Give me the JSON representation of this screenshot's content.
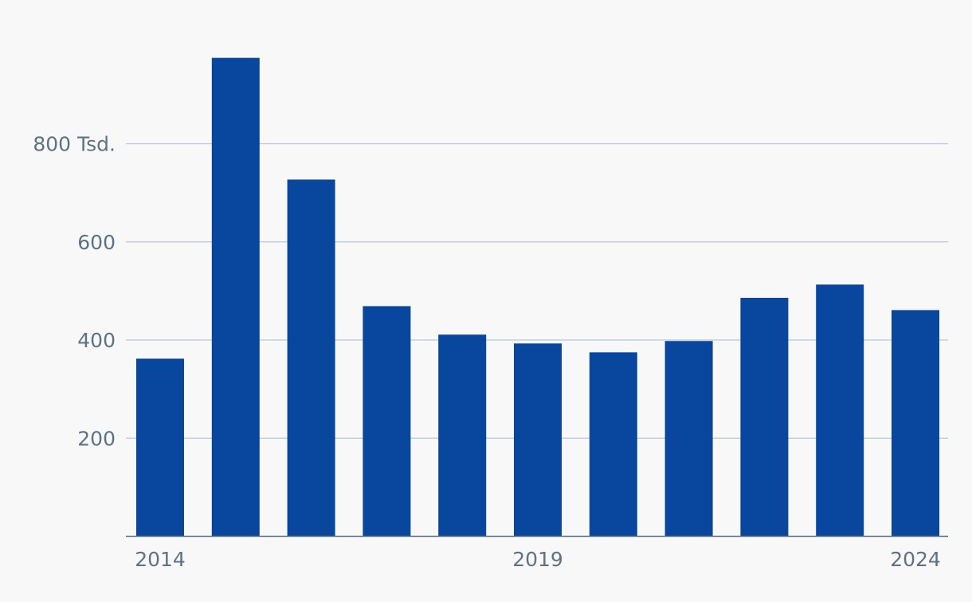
{
  "chart_data": {
    "type": "bar",
    "categories": [
      "2014",
      "2015",
      "2016",
      "2017",
      "2018",
      "2019",
      "2020",
      "2021",
      "2022",
      "2023",
      "2024"
    ],
    "values": [
      362,
      975,
      727,
      469,
      411,
      393,
      375,
      398,
      486,
      513,
      461
    ],
    "x_tick_labels": [
      "2014",
      "2019",
      "2024"
    ],
    "y_ticks": [
      200,
      400,
      600,
      800
    ],
    "y_tick_labels": [
      "200",
      "400",
      "600",
      "800 Tsd."
    ],
    "ylim": [
      0,
      1000
    ],
    "title": "",
    "xlabel": "",
    "ylabel": "",
    "grid": true,
    "legend": "none",
    "colors": {
      "bar": "#09469d",
      "grid": "#b8c8d4",
      "axis": "#5a6e7e",
      "text": "#5d7384",
      "background": "#f8f8f8"
    }
  }
}
